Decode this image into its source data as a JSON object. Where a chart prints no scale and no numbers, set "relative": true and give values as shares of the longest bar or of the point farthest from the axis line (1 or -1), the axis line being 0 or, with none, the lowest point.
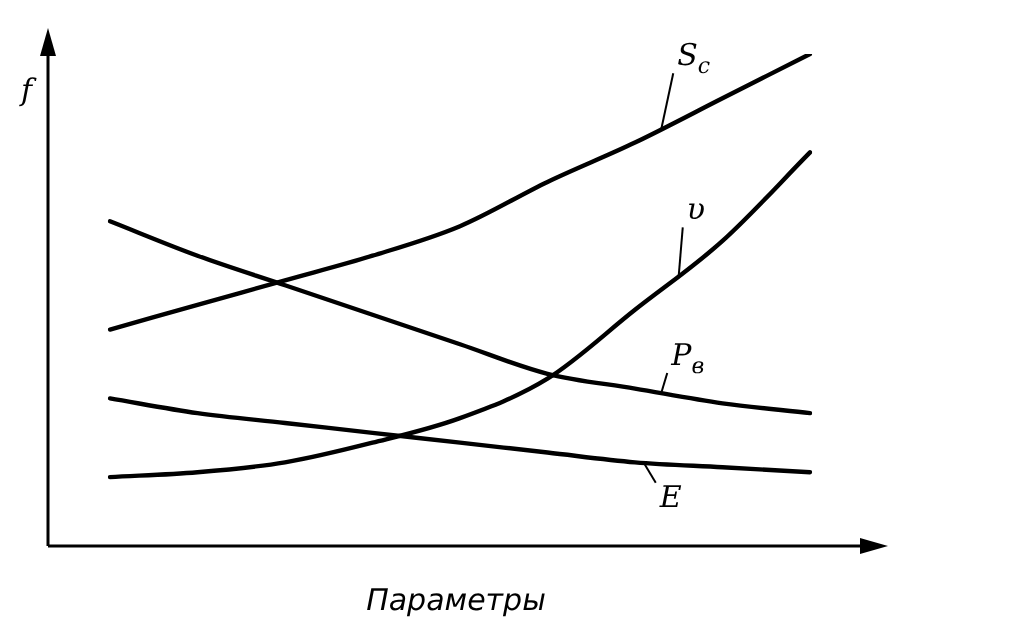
{
  "chart_data": {
    "type": "line",
    "relative": true,
    "xlabel": "Параметры",
    "ylabel": "f",
    "marker": "none",
    "line_style": "solid",
    "categories": [
      null,
      null,
      null,
      null,
      null,
      null,
      null,
      null,
      null
    ],
    "series": [
      {
        "name": "S$_{c}$",
        "color": "#000000",
        "values": [
          0.44,
          0.49,
          0.54,
          0.59,
          0.65,
          0.74,
          0.82,
          0.91,
          1
        ]
      },
      {
        "name": "υ",
        "color": "#000000",
        "values": [
          0.14,
          0.15,
          0.17,
          0.21,
          0.26,
          0.34,
          0.48,
          0.62,
          0.8
        ]
      },
      {
        "name": "P$_{в}$",
        "color": "#000000",
        "values": [
          0.66,
          0.59,
          0.53,
          0.47,
          0.41,
          0.35,
          0.32,
          0.29,
          0.27
        ]
      },
      {
        "name": "E",
        "color": "#000000",
        "values": [
          0.3,
          0.27,
          0.25,
          0.23,
          0.21,
          0.19,
          0.17,
          0.16,
          0.15
        ]
      }
    ]
  }
}
